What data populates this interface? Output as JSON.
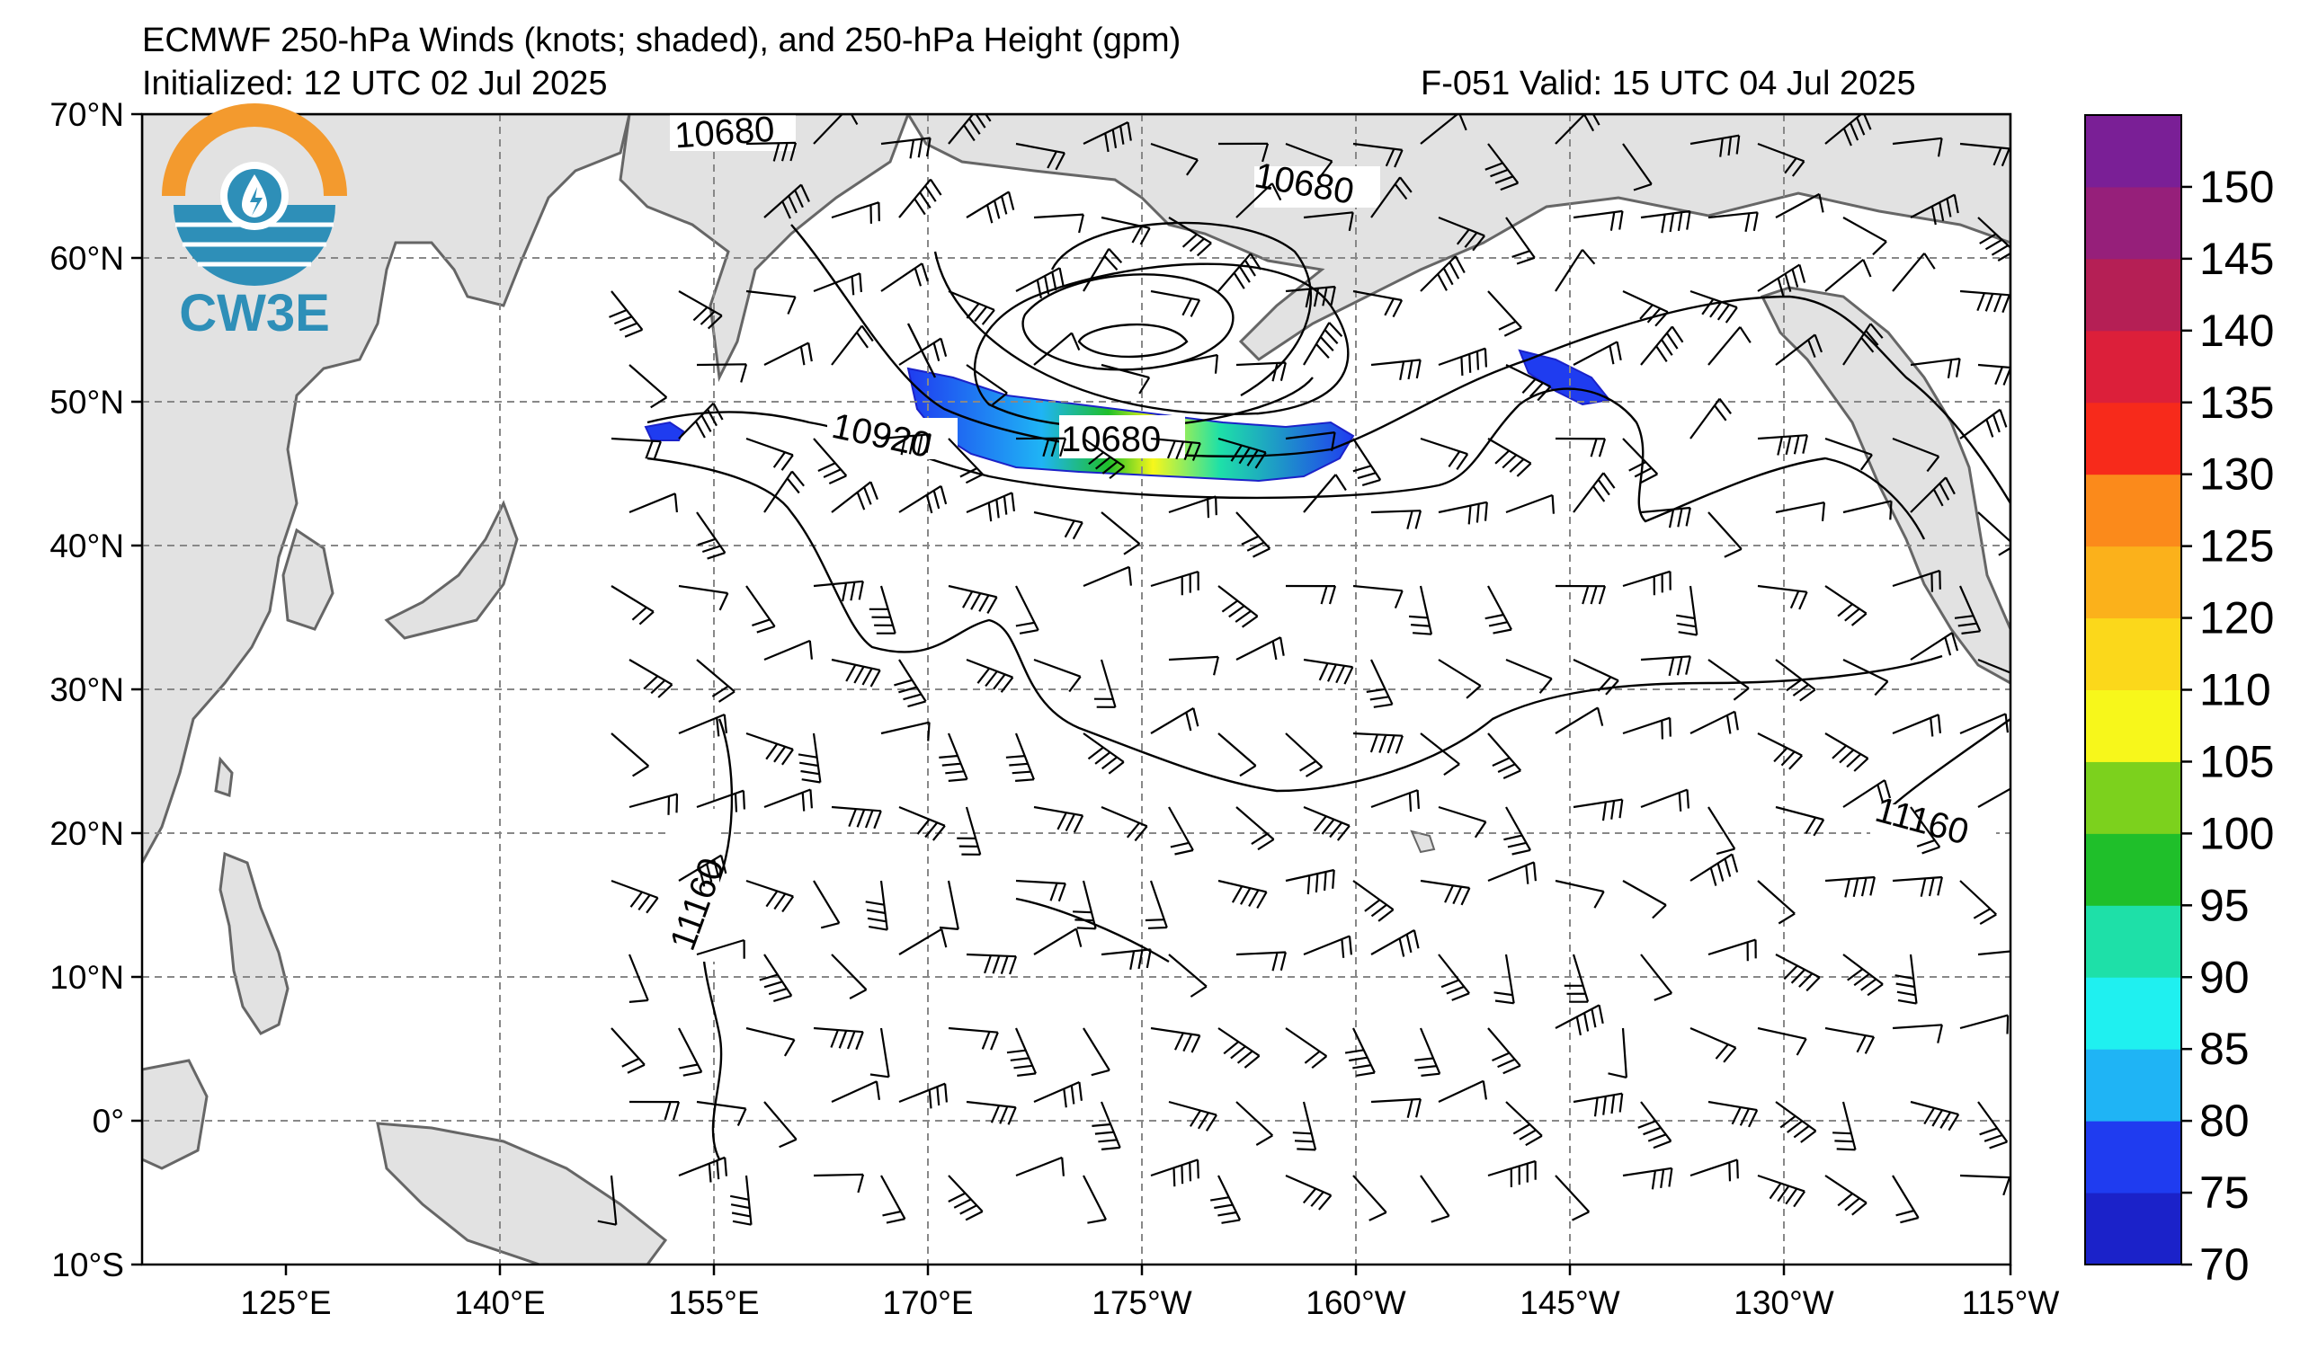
{
  "header": {
    "title_line1": "ECMWF 250-hPa Winds (knots; shaded), and 250-hPa Height (gpm)",
    "initialized": "Initialized: 12 UTC 02 Jul 2025",
    "forecast": "F-051  Valid: 15 UTC 04 Jul 2025"
  },
  "logo": {
    "text": "CW3E",
    "colors": {
      "orange": "#F39A2E",
      "teal": "#2E8FB8",
      "blue": "#1F6F97"
    }
  },
  "map": {
    "lat_ticks": [
      "70°N",
      "60°N",
      "50°N",
      "40°N",
      "30°N",
      "20°N",
      "10°N",
      "0°",
      "10°S"
    ],
    "lon_ticks": [
      "125°E",
      "140°E",
      "155°E",
      "170°E",
      "175°W",
      "160°W",
      "145°W",
      "130°W",
      "115°W"
    ],
    "contour_labels": [
      "10680",
      "10680",
      "10680",
      "10920",
      "11160",
      "11160"
    ],
    "land_color": "#e2e2e2",
    "coast_color": "#666666"
  },
  "colorbar": {
    "labels": [
      "150",
      "145",
      "140",
      "135",
      "130",
      "125",
      "120",
      "110",
      "105",
      "100",
      "95",
      "90",
      "85",
      "80",
      "75",
      "70"
    ],
    "bins": [
      70,
      75,
      80,
      85,
      90,
      95,
      100,
      105,
      110,
      120,
      125,
      130,
      135,
      140,
      145,
      150,
      155
    ],
    "colors": [
      "#1b22c9",
      "#1f3cf0",
      "#1fb4f5",
      "#1ff0f0",
      "#1ee0a8",
      "#1fbf2a",
      "#7cd11d",
      "#f7f71b",
      "#fbd81b",
      "#fbb11b",
      "#fb8a1b",
      "#f72a1b",
      "#dc1f3a",
      "#b51f55",
      "#961f7a",
      "#7a1f96"
    ]
  }
}
